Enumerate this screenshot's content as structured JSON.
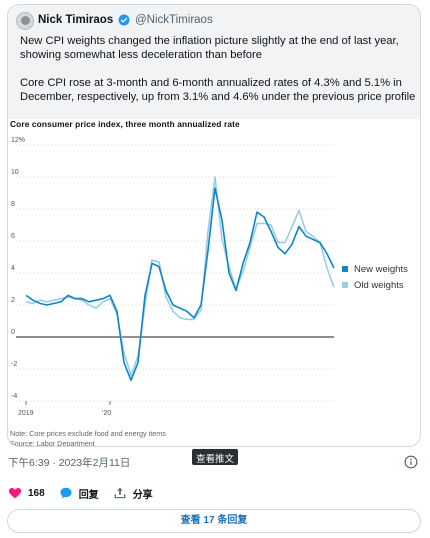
{
  "tweet": {
    "author": "Nick Timiraos",
    "handle": "@NickTimiraos",
    "paragraph1": "New CPI weights changed the inflation picture slightly at the end of last year, showing somewhat less deceleration than before",
    "paragraph2": "Core CPI rose at 3-month and 6-month annualized rates of 4.3% and 5.1% in December, respectively, up from 3.1% and 4.6% under the previous price profile",
    "timestamp": "下午6:39 · 2023年2月11日",
    "view_tooltip": "查看推文",
    "likes": "168",
    "reply_label": "回复",
    "share_label": "分享",
    "read_replies": "查看 17 条回复"
  },
  "colors": {
    "new_series": "#0d86c6",
    "old_series": "#9ccbe8",
    "like": "#f91880",
    "reply": "#1d9bf0"
  },
  "icons": [
    "verified-badge-icon",
    "info-icon",
    "heart-icon",
    "reply-bubble-icon",
    "share-icon"
  ],
  "chart_data": {
    "type": "line",
    "title": "Core consumer price index, three month annualized rate",
    "note": "Note: Core prices exclude food and energy items",
    "source": "Source: Labor Department",
    "y_ticks": [
      "12%",
      "10",
      "8",
      "6",
      "4",
      "2",
      "0",
      "-2",
      "-4"
    ],
    "y_tick_values": [
      12,
      10,
      8,
      6,
      4,
      2,
      0,
      -2,
      -4
    ],
    "ylim": [
      -4,
      12
    ],
    "x_tick_labels": [
      "2019",
      "'20"
    ],
    "x_tick_index": [
      0,
      12
    ],
    "legend_position": "right",
    "series": [
      {
        "name": "New weights",
        "values": [
          2.6,
          2.3,
          2.1,
          2.0,
          2.1,
          2.2,
          2.6,
          2.4,
          2.4,
          2.2,
          2.3,
          2.4,
          2.6,
          1.6,
          -1.6,
          -2.7,
          -1.6,
          2.6,
          4.6,
          4.4,
          2.9,
          2.0,
          1.8,
          1.6,
          1.2,
          2.0,
          5.4,
          9.3,
          7.3,
          4.0,
          2.9,
          4.6,
          5.9,
          7.8,
          7.5,
          6.6,
          5.6,
          5.2,
          5.8,
          6.9,
          6.3,
          6.1,
          5.9,
          5.2,
          4.3
        ]
      },
      {
        "name": "Old weights",
        "values": [
          2.2,
          2.1,
          2.3,
          2.2,
          2.3,
          2.4,
          2.5,
          2.4,
          2.3,
          2.0,
          1.8,
          2.2,
          2.4,
          1.4,
          -1.0,
          -2.4,
          -1.2,
          2.0,
          4.8,
          4.7,
          2.5,
          1.6,
          1.2,
          1.1,
          1.1,
          1.7,
          6.6,
          10.0,
          6.1,
          4.4,
          3.0,
          4.1,
          5.6,
          7.1,
          7.1,
          7.0,
          5.9,
          5.9,
          6.9,
          7.9,
          6.6,
          6.3,
          5.9,
          4.3,
          3.1
        ]
      }
    ]
  }
}
